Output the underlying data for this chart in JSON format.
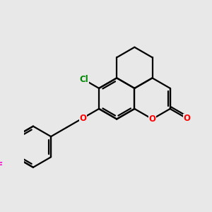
{
  "bg_color": "#e8e8e8",
  "bond_color": "#000000",
  "O_color": "#ff0000",
  "F_color": "#ff00cc",
  "Cl_color": "#008800",
  "lw": 1.6,
  "figsize": [
    3.0,
    3.0
  ],
  "dpi": 100,
  "xlim": [
    0,
    10
  ],
  "ylim": [
    0,
    10
  ]
}
